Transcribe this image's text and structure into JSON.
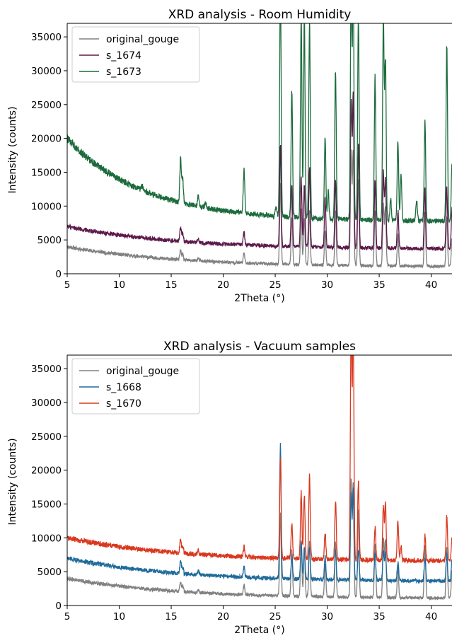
{
  "chart_data": [
    {
      "type": "line",
      "title": "XRD analysis - Room Humidity",
      "xlabel": "2Theta (°)",
      "ylabel": "Intensity (counts)",
      "xlim": [
        5,
        42
      ],
      "ylim": [
        0,
        37000
      ],
      "xticks": [
        5,
        10,
        15,
        20,
        25,
        30,
        35,
        40
      ],
      "yticks": [
        0,
        5000,
        10000,
        15000,
        20000,
        25000,
        30000,
        35000
      ],
      "grid": false,
      "legend_position": "upper-left",
      "series": [
        {
          "name": "original_gouge",
          "color": "#808080",
          "baseline_start": 4000,
          "baseline_end": 1000,
          "decay": 3.5,
          "peaks": [
            [
              15.9,
              1400
            ],
            [
              16.1,
              800
            ],
            [
              17.6,
              400
            ],
            [
              22.0,
              1500
            ],
            [
              25.5,
              12000
            ],
            [
              26.6,
              7000
            ],
            [
              27.5,
              8000
            ],
            [
              27.8,
              7000
            ],
            [
              28.3,
              8000
            ],
            [
              29.8,
              5000
            ],
            [
              30.8,
              8000
            ],
            [
              32.3,
              17000
            ],
            [
              32.5,
              17000
            ],
            [
              33.0,
              13000
            ],
            [
              34.6,
              8000
            ],
            [
              35.4,
              9000
            ],
            [
              35.6,
              8500
            ],
            [
              36.8,
              4500
            ],
            [
              39.4,
              8000
            ],
            [
              41.5,
              7500
            ],
            [
              42.0,
              4000
            ]
          ]
        },
        {
          "name": "s_1674",
          "color": "#5c1a4a",
          "baseline_start": 7000,
          "baseline_end": 3600,
          "decay": 3.5,
          "peaks": [
            [
              15.9,
              2000
            ],
            [
              16.1,
              1000
            ],
            [
              17.6,
              600
            ],
            [
              22.0,
              2000
            ],
            [
              25.5,
              15000
            ],
            [
              26.6,
              9000
            ],
            [
              27.5,
              10000
            ],
            [
              27.8,
              9000
            ],
            [
              28.3,
              12000
            ],
            [
              29.8,
              7000
            ],
            [
              30.8,
              10000
            ],
            [
              32.3,
              22000
            ],
            [
              32.5,
              22000
            ],
            [
              33.0,
              15000
            ],
            [
              34.6,
              10000
            ],
            [
              35.4,
              11000
            ],
            [
              35.6,
              10000
            ],
            [
              36.8,
              5500
            ],
            [
              39.4,
              9000
            ],
            [
              41.5,
              9000
            ],
            [
              42.0,
              6000
            ]
          ]
        },
        {
          "name": "s_1673",
          "color": "#1c6b3c",
          "baseline_start": 20000,
          "baseline_end": 7700,
          "decay": 5,
          "peaks": [
            [
              12.2,
              600
            ],
            [
              15.9,
              6500
            ],
            [
              16.1,
              3500
            ],
            [
              17.6,
              1500
            ],
            [
              18.3,
              900
            ],
            [
              22.0,
              6500
            ],
            [
              25.1,
              1500
            ],
            [
              25.5,
              35000
            ],
            [
              26.6,
              19000
            ],
            [
              27.5,
              30000
            ],
            [
              27.8,
              30000
            ],
            [
              28.3,
              29000
            ],
            [
              29.8,
              12000
            ],
            [
              30.1,
              4000
            ],
            [
              30.8,
              22000
            ],
            [
              32.3,
              35000
            ],
            [
              32.5,
              35000
            ],
            [
              33.0,
              30000
            ],
            [
              34.6,
              21000
            ],
            [
              35.4,
              30000
            ],
            [
              35.6,
              24000
            ],
            [
              36.1,
              3000
            ],
            [
              36.8,
              12000
            ],
            [
              37.1,
              7000
            ],
            [
              38.6,
              3000
            ],
            [
              39.4,
              15000
            ],
            [
              41.5,
              26000
            ],
            [
              42.0,
              9000
            ]
          ]
        }
      ]
    },
    {
      "type": "line",
      "title": "XRD analysis - Vacuum samples",
      "xlabel": "2Theta (°)",
      "ylabel": "Intensity (counts)",
      "xlim": [
        5,
        42
      ],
      "ylim": [
        0,
        37000
      ],
      "xticks": [
        5,
        10,
        15,
        20,
        25,
        30,
        35,
        40
      ],
      "yticks": [
        0,
        5000,
        10000,
        15000,
        20000,
        25000,
        30000,
        35000
      ],
      "grid": false,
      "legend_position": "upper-left",
      "series": [
        {
          "name": "original_gouge",
          "color": "#808080",
          "baseline_start": 4000,
          "baseline_end": 1000,
          "decay": 3.5,
          "peaks": [
            [
              15.9,
              1400
            ],
            [
              16.1,
              800
            ],
            [
              17.6,
              400
            ],
            [
              22.0,
              1500
            ],
            [
              25.5,
              12000
            ],
            [
              26.6,
              7000
            ],
            [
              27.5,
              8000
            ],
            [
              27.8,
              7000
            ],
            [
              28.3,
              8000
            ],
            [
              29.8,
              5000
            ],
            [
              30.8,
              8000
            ],
            [
              32.3,
              17000
            ],
            [
              32.5,
              17000
            ],
            [
              33.0,
              13000
            ],
            [
              34.6,
              8000
            ],
            [
              35.4,
              9000
            ],
            [
              35.6,
              8500
            ],
            [
              36.8,
              4500
            ],
            [
              39.4,
              8000
            ],
            [
              41.5,
              7500
            ],
            [
              42.0,
              4000
            ]
          ]
        },
        {
          "name": "s_1668",
          "color": "#1f6a9a",
          "baseline_start": 7000,
          "baseline_end": 3500,
          "decay": 3.5,
          "peaks": [
            [
              15.9,
              2000
            ],
            [
              16.1,
              1000
            ],
            [
              17.6,
              500
            ],
            [
              22.0,
              1500
            ],
            [
              25.5,
              19700
            ],
            [
              26.6,
              3500
            ],
            [
              27.5,
              5300
            ],
            [
              27.8,
              4500
            ],
            [
              28.3,
              4800
            ],
            [
              29.8,
              3500
            ],
            [
              30.8,
              4500
            ],
            [
              32.3,
              13000
            ],
            [
              32.5,
              13000
            ],
            [
              33.0,
              4500
            ],
            [
              34.6,
              4000
            ],
            [
              35.4,
              4300
            ],
            [
              35.6,
              4000
            ],
            [
              36.8,
              2700
            ],
            [
              39.4,
              3500
            ],
            [
              41.5,
              4000
            ],
            [
              42.0,
              3000
            ]
          ]
        },
        {
          "name": "s_1670",
          "color": "#d9381e",
          "baseline_start": 10000,
          "baseline_end": 6500,
          "decay": 3.5,
          "peaks": [
            [
              15.9,
              2000
            ],
            [
              16.1,
              1200
            ],
            [
              17.6,
              500
            ],
            [
              22.0,
              1500
            ],
            [
              25.5,
              14700
            ],
            [
              26.6,
              5200
            ],
            [
              27.5,
              9800
            ],
            [
              27.8,
              9300
            ],
            [
              28.3,
              12200
            ],
            [
              29.8,
              4000
            ],
            [
              30.8,
              8700
            ],
            [
              32.3,
              35000
            ],
            [
              32.5,
              35000
            ],
            [
              33.0,
              11600
            ],
            [
              34.6,
              4800
            ],
            [
              35.4,
              8000
            ],
            [
              35.6,
              8200
            ],
            [
              36.8,
              6000
            ],
            [
              37.1,
              2000
            ],
            [
              39.4,
              3600
            ],
            [
              41.5,
              6700
            ],
            [
              42.0,
              3200
            ]
          ]
        }
      ]
    }
  ]
}
